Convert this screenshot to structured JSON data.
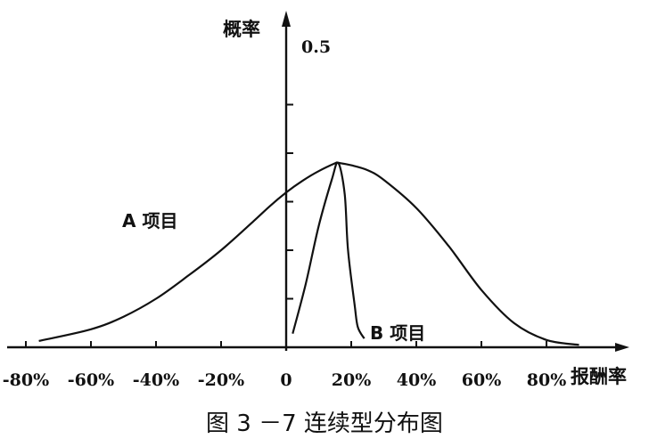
{
  "chart_data": {
    "type": "line",
    "title": "",
    "caption": "图 3 －7  连续型分布图",
    "xlabel": "报酬率",
    "ylabel": "概率",
    "y_tick_label": "0.5",
    "x_ticks": [
      -80,
      -60,
      -40,
      -20,
      0,
      20,
      40,
      60,
      80
    ],
    "x_tick_labels": [
      "-80%",
      "-60%",
      "-40%",
      "-20%",
      "0",
      "20%",
      "40%",
      "60%",
      "80%"
    ],
    "xlim": [
      -86,
      96
    ],
    "ylim": [
      0,
      0.5
    ],
    "y_minor_ticks": [
      0.1,
      0.2,
      0.3,
      0.4
    ],
    "grid": false,
    "series": [
      {
        "name": "A 项目",
        "x": [
          -76,
          -60,
          -50,
          -40,
          -30,
          -20,
          -10,
          -5,
          0,
          5,
          10,
          15,
          16,
          20,
          25,
          30,
          40,
          50,
          60,
          70,
          80,
          90
        ],
        "y": [
          0.013,
          0.037,
          0.063,
          0.1,
          0.148,
          0.2,
          0.26,
          0.291,
          0.319,
          0.343,
          0.363,
          0.379,
          0.38,
          0.375,
          0.365,
          0.345,
          0.287,
          0.208,
          0.118,
          0.05,
          0.015,
          0.005
        ]
      },
      {
        "name": "B 项目",
        "x": [
          2,
          6,
          10,
          14,
          16,
          18,
          19,
          21,
          22,
          24
        ],
        "y": [
          0.028,
          0.13,
          0.25,
          0.345,
          0.38,
          0.315,
          0.2,
          0.09,
          0.042,
          0.018
        ]
      }
    ]
  }
}
